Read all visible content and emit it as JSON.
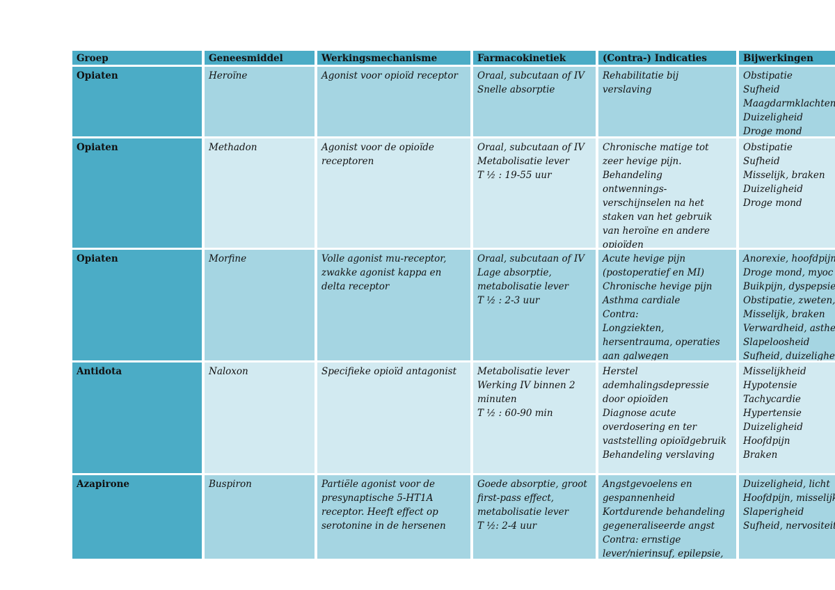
{
  "colors": {
    "header": "#4bacc6",
    "group": "#4bacc6",
    "row_dark": "#a5d5e2",
    "row_light": "#d2eaf1"
  },
  "headers": [
    "Groep",
    "Geneesmiddel",
    "Werkingsmechanisme",
    "Farmacokinetiek",
    "(Contra-) Indicaties",
    "Bijwerkingen"
  ],
  "rows": [
    {
      "groep": "Opiaten",
      "middel": "Heroïne",
      "mechanisme": [
        "Agonist voor opioïd receptor"
      ],
      "kinetiek": [
        "Oraal, subcutaan of IV",
        "Snelle absorptie"
      ],
      "indicaties": [
        "Rehabilitatie bij",
        "verslaving"
      ],
      "bijwerkingen": [
        "Obstipatie",
        "Sufheid",
        "Maagdarmklachten",
        "Duizeligheid",
        "Droge mond"
      ]
    },
    {
      "groep": "Opiaten",
      "middel": "Methadon",
      "mechanisme": [
        "Agonist voor de opioïde",
        "receptoren"
      ],
      "kinetiek": [
        "Oraal, subcutaan of IV",
        "Metabolisatie lever",
        "T ½ : 19-55 uur"
      ],
      "indicaties": [
        "Chronische matige tot",
        "zeer hevige pijn.",
        "Behandeling",
        "ontwennings-",
        "verschijnselen na het",
        "staken van het gebruik",
        "van heroïne en andere",
        "opioïden"
      ],
      "bijwerkingen": [
        "Obstipatie",
        "Sufheid",
        "Misselijk, braken",
        "Duizeligheid",
        "Droge mond"
      ]
    },
    {
      "groep": "Opiaten",
      "middel": "Morfine",
      "mechanisme": [
        "Volle agonist mu-receptor,",
        "zwakke agonist kappa en",
        "delta receptor"
      ],
      "kinetiek": [
        "Oraal, subcutaan of IV",
        "Lage absorptie,",
        "metabolisatie lever",
        "T ½ : 2-3 uur"
      ],
      "indicaties": [
        "Acute hevige pijn",
        "(postoperatief en MI)",
        "Chronische hevige pijn",
        "Asthma cardiale",
        "Contra:",
        "Longziekten,",
        "hersentrauma, operaties",
        "aan galwegen"
      ],
      "bijwerkingen": [
        "Anorexie, hoofdpijn",
        "Droge mond, myoc",
        "Buikpijn, dyspepsie",
        "Obstipatie, zweten,",
        "Misselijk, braken",
        "Verwardheid, asthe",
        "Slapeloosheid",
        "Sufheid, duizelighe"
      ]
    },
    {
      "groep": "Antidota",
      "middel": "Naloxon",
      "mechanisme": [
        "Specifieke opioïd antagonist"
      ],
      "kinetiek": [
        "Metabolisatie lever",
        "Werking IV binnen 2",
        "minuten",
        "T ½ : 60-90 min"
      ],
      "indicaties": [
        "Herstel",
        "ademhalingsdepressie",
        "door opioïden",
        "Diagnose acute",
        "overdosering en ter",
        "vaststelling opioïdgebruik",
        "Behandeling verslaving"
      ],
      "bijwerkingen": [
        "Misselijkheid",
        "Hypotensie",
        "Tachycardie",
        "Hypertensie",
        "Duizeligheid",
        "Hoofdpijn",
        "Braken"
      ]
    },
    {
      "groep": "Azapirone",
      "middel": "Buspiron",
      "mechanisme": [
        "Partiële agonist voor de",
        "presynaptische 5-HT1A",
        "receptor. Heeft effect op",
        "serotonine in de hersenen"
      ],
      "kinetiek": [
        "Goede absorptie, groot",
        "first-pass effect,",
        "metabolisatie lever",
        "T ½: 2-4 uur"
      ],
      "indicaties": [
        "Angstgevoelens en",
        "gespannenheid",
        "Kortdurende behandeling",
        "gegeneraliseerde angst",
        "Contra: ernstige",
        "lever/nierinsuf, epilepsie,"
      ],
      "bijwerkingen": [
        "Duizeligheid, licht",
        "Hoofdpijn, misselijk",
        "Slaperigheid",
        "Sufheid, nervositeit"
      ]
    }
  ]
}
